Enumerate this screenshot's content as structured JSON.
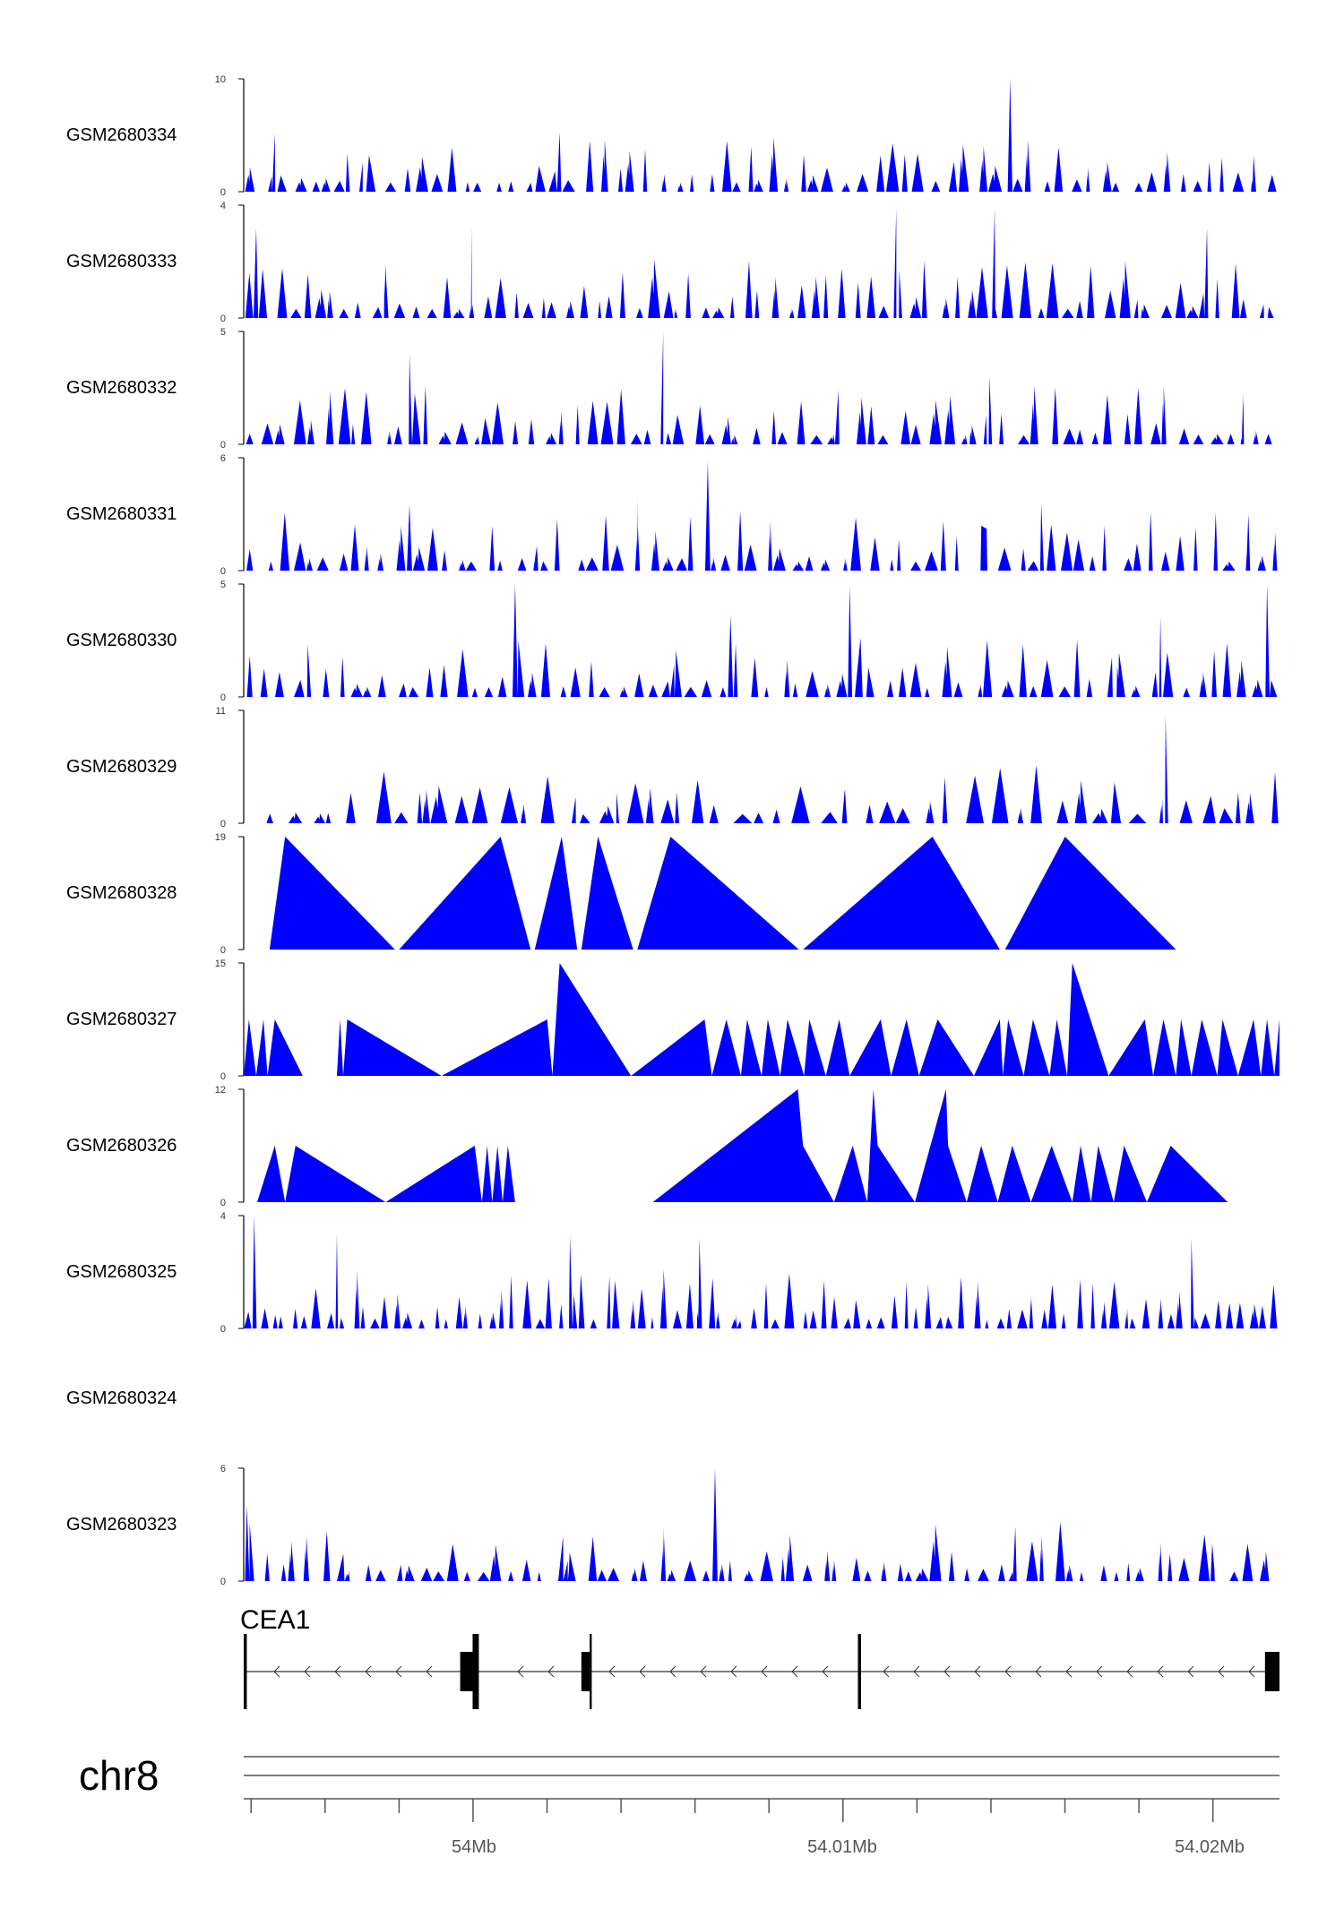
{
  "colors": {
    "signal": "#0000ff",
    "axis": "#000000",
    "gene": "#000000",
    "ruler": "#555555"
  },
  "chart_data": {
    "type": "area",
    "title": "",
    "xlabel": "",
    "ylabel": "",
    "xlim": [
      53993.8,
      54021.8
    ],
    "x_unit": "kb on chr8",
    "chromosome": "chr8",
    "axis_ticks": [
      "54Mb",
      "54.01Mb",
      "54.02Mb"
    ],
    "series": [
      {
        "name": "GSM2680334",
        "ymin": "0",
        "ymax": "10",
        "vmax": 10,
        "empty": false,
        "x_from": 0.0,
        "x_to": 1.0,
        "peak_count": 68,
        "pattern": "dense",
        "seed": 334,
        "major_peaks": [
          [
            0.03,
            5.2
          ],
          [
            0.1,
            3.4
          ],
          [
            0.305,
            5.3
          ],
          [
            0.49,
            4.0
          ],
          [
            0.74,
            10.0
          ],
          [
            0.975,
            3.2
          ]
        ]
      },
      {
        "name": "GSM2680333",
        "ymin": "0",
        "ymax": "4",
        "vmax": 4,
        "empty": false,
        "x_from": 0.0,
        "x_to": 1.0,
        "peak_count": 75,
        "pattern": "dense",
        "seed": 333,
        "major_peaks": [
          [
            0.012,
            3.2
          ],
          [
            0.22,
            3.3
          ],
          [
            0.63,
            3.9
          ],
          [
            0.725,
            3.9
          ],
          [
            0.93,
            3.2
          ]
        ]
      },
      {
        "name": "GSM2680332",
        "ymin": "0",
        "ymax": "5",
        "vmax": 5,
        "empty": false,
        "x_from": 0.0,
        "x_to": 1.0,
        "peak_count": 70,
        "pattern": "dense",
        "seed": 332,
        "major_peaks": [
          [
            0.16,
            4.0
          ],
          [
            0.405,
            5.0
          ],
          [
            0.72,
            3.0
          ],
          [
            0.965,
            2.2
          ]
        ]
      },
      {
        "name": "GSM2680331",
        "ymin": "0",
        "ymax": "6",
        "vmax": 6,
        "empty": false,
        "x_from": 0.0,
        "x_to": 1.0,
        "peak_count": 70,
        "pattern": "dense",
        "seed": 331,
        "major_peaks": [
          [
            0.16,
            3.5
          ],
          [
            0.38,
            3.8
          ],
          [
            0.448,
            5.8
          ],
          [
            0.77,
            3.6
          ],
          [
            0.97,
            3.0
          ]
        ]
      },
      {
        "name": "GSM2680330",
        "ymin": "0",
        "ymax": "5",
        "vmax": 5,
        "empty": false,
        "x_from": 0.0,
        "x_to": 1.0,
        "peak_count": 70,
        "pattern": "dense",
        "seed": 330,
        "major_peaks": [
          [
            0.262,
            5.0
          ],
          [
            0.47,
            3.6
          ],
          [
            0.585,
            4.9
          ],
          [
            0.885,
            3.6
          ],
          [
            0.988,
            5.0
          ]
        ]
      },
      {
        "name": "GSM2680329",
        "ymin": "0",
        "ymax": "11",
        "vmax": 11,
        "empty": false,
        "x_from": 0.017,
        "x_to": 1.0,
        "peak_count": 48,
        "pattern": "sparse",
        "seed": 329,
        "major_peaks": [
          [
            0.17,
            3.0
          ],
          [
            0.36,
            3.0
          ],
          [
            0.418,
            3.0
          ],
          [
            0.58,
            3.0
          ],
          [
            0.89,
            10.5
          ],
          [
            0.96,
            3.0
          ]
        ]
      },
      {
        "name": "GSM2680328",
        "ymin": "0",
        "ymax": "19",
        "vmax": 19,
        "empty": false,
        "x_from": 0.025,
        "x_to": 1.0,
        "peak_count": 0,
        "pattern": "points",
        "seed": 328,
        "points": [
          [
            0.025,
            0
          ],
          [
            0.04,
            19
          ],
          [
            0.146,
            0
          ],
          [
            0.15,
            0
          ],
          [
            0.248,
            19
          ],
          [
            0.277,
            0
          ],
          [
            0.281,
            0
          ],
          [
            0.307,
            19
          ],
          [
            0.322,
            0
          ],
          [
            0.326,
            0
          ],
          [
            0.342,
            19
          ],
          [
            0.376,
            0
          ],
          [
            0.38,
            0
          ],
          [
            0.412,
            19
          ],
          [
            0.536,
            0
          ],
          [
            0.54,
            0
          ],
          [
            0.665,
            19
          ],
          [
            0.73,
            0
          ],
          [
            0.735,
            0
          ],
          [
            0.793,
            19
          ],
          [
            0.9,
            0
          ]
        ]
      },
      {
        "name": "GSM2680327",
        "ymin": "0",
        "ymax": "15",
        "vmax": 15,
        "empty": false,
        "x_from": 0.0,
        "x_to": 1.0,
        "peak_count": 0,
        "pattern": "points",
        "seed": 327,
        "points": [
          [
            0,
            0
          ],
          [
            0.005,
            7.5
          ],
          [
            0.012,
            0
          ],
          [
            0.019,
            7.5
          ],
          [
            0.023,
            0
          ],
          [
            0.03,
            7.5
          ],
          [
            0.057,
            0
          ],
          [
            0.09,
            0
          ],
          [
            0.093,
            7.5
          ],
          [
            0.096,
            0
          ],
          [
            0.1,
            7.5
          ],
          [
            0.191,
            0
          ],
          [
            0.293,
            7.5
          ],
          [
            0.298,
            0
          ],
          [
            0.305,
            15
          ],
          [
            0.374,
            0
          ],
          [
            0.445,
            7.5
          ],
          [
            0.452,
            0
          ],
          [
            0.466,
            7.5
          ],
          [
            0.48,
            0
          ],
          [
            0.486,
            7.5
          ],
          [
            0.5,
            0
          ],
          [
            0.506,
            7.5
          ],
          [
            0.518,
            0
          ],
          [
            0.525,
            7.5
          ],
          [
            0.541,
            0
          ],
          [
            0.546,
            7.5
          ],
          [
            0.562,
            0
          ],
          [
            0.575,
            7.5
          ],
          [
            0.585,
            0
          ],
          [
            0.615,
            7.5
          ],
          [
            0.625,
            0
          ],
          [
            0.64,
            7.5
          ],
          [
            0.652,
            0
          ],
          [
            0.67,
            7.5
          ],
          [
            0.705,
            0
          ],
          [
            0.73,
            7.5
          ],
          [
            0.733,
            0
          ],
          [
            0.738,
            7.5
          ],
          [
            0.753,
            0
          ],
          [
            0.762,
            7.5
          ],
          [
            0.778,
            0
          ],
          [
            0.785,
            7.5
          ],
          [
            0.795,
            0
          ],
          [
            0.8,
            15
          ],
          [
            0.835,
            0
          ],
          [
            0.87,
            7.5
          ],
          [
            0.878,
            0
          ],
          [
            0.888,
            7.5
          ],
          [
            0.9,
            0
          ],
          [
            0.905,
            7.5
          ],
          [
            0.915,
            0
          ],
          [
            0.925,
            7.5
          ],
          [
            0.94,
            0
          ],
          [
            0.945,
            7.5
          ],
          [
            0.96,
            0
          ],
          [
            0.975,
            7.5
          ],
          [
            0.982,
            0
          ],
          [
            0.988,
            7.5
          ],
          [
            0.995,
            0
          ],
          [
            1,
            7.5
          ],
          [
            1,
            0
          ]
        ]
      },
      {
        "name": "GSM2680326",
        "ymin": "0",
        "ymax": "12",
        "vmax": 12,
        "empty": false,
        "x_from": 0.013,
        "x_to": 0.95,
        "peak_count": 0,
        "pattern": "points",
        "seed": 326,
        "points": [
          [
            0.013,
            0
          ],
          [
            0.03,
            6
          ],
          [
            0.04,
            0
          ],
          [
            0.05,
            6
          ],
          [
            0.137,
            0
          ],
          [
            0.223,
            6
          ],
          [
            0.23,
            0
          ],
          [
            0.235,
            6
          ],
          [
            0.24,
            0
          ],
          [
            0.245,
            6
          ],
          [
            0.25,
            0
          ],
          [
            0.255,
            6
          ],
          [
            0.262,
            0
          ],
          [
            0.395,
            0
          ],
          [
            0.535,
            12
          ],
          [
            0.54,
            6
          ],
          [
            0.57,
            0
          ],
          [
            0.588,
            6
          ],
          [
            0.602,
            0
          ],
          [
            0.608,
            12
          ],
          [
            0.612,
            6
          ],
          [
            0.648,
            0
          ],
          [
            0.678,
            12
          ],
          [
            0.68,
            6
          ],
          [
            0.698,
            0
          ],
          [
            0.712,
            6
          ],
          [
            0.728,
            0
          ],
          [
            0.742,
            6
          ],
          [
            0.76,
            0
          ],
          [
            0.78,
            6
          ],
          [
            0.8,
            0
          ],
          [
            0.808,
            6
          ],
          [
            0.818,
            0
          ],
          [
            0.825,
            6
          ],
          [
            0.84,
            0
          ],
          [
            0.85,
            6
          ],
          [
            0.872,
            0
          ],
          [
            0.895,
            6
          ],
          [
            0.95,
            0
          ]
        ]
      },
      {
        "name": "GSM2680325",
        "ymin": "0",
        "ymax": "4",
        "vmax": 4,
        "empty": false,
        "x_from": 0.0,
        "x_to": 1.0,
        "peak_count": 90,
        "pattern": "dense",
        "seed": 325,
        "major_peaks": [
          [
            0.01,
            4.0
          ],
          [
            0.09,
            3.4
          ],
          [
            0.315,
            3.3
          ],
          [
            0.44,
            3.2
          ],
          [
            0.915,
            3.2
          ]
        ]
      },
      {
        "name": "GSM2680324",
        "ymin": "",
        "ymax": "",
        "vmax": 1,
        "empty": true,
        "x_from": 0.0,
        "x_to": 1.0,
        "peak_count": 0,
        "pattern": "dense",
        "seed": 324
      },
      {
        "name": "GSM2680323",
        "ymin": "0",
        "ymax": "6",
        "vmax": 6,
        "empty": false,
        "x_from": 0.0,
        "x_to": 0.99,
        "peak_count": 70,
        "pattern": "dense",
        "seed": 323,
        "major_peaks": [
          [
            0.003,
            4.0
          ],
          [
            0.405,
            2.9
          ],
          [
            0.455,
            6.0
          ],
          [
            0.745,
            2.9
          ],
          [
            0.935,
            2.0
          ]
        ]
      }
    ],
    "gene": {
      "name": "CEA1",
      "strand": "-",
      "start": 0.0,
      "end": 1.0,
      "exons": [
        {
          "x": 0.0,
          "w": 0.003,
          "tall": true
        },
        {
          "x": 0.209,
          "w": 0.012,
          "tall": false
        },
        {
          "x": 0.221,
          "w": 0.006,
          "tall": true
        },
        {
          "x": 0.326,
          "w": 0.008,
          "tall": false
        },
        {
          "x": 0.334,
          "w": 0.002,
          "tall": true
        },
        {
          "x": 0.593,
          "w": 0.003,
          "tall": true
        },
        {
          "x": 0.986,
          "w": 0.014,
          "tall": false
        }
      ]
    }
  }
}
